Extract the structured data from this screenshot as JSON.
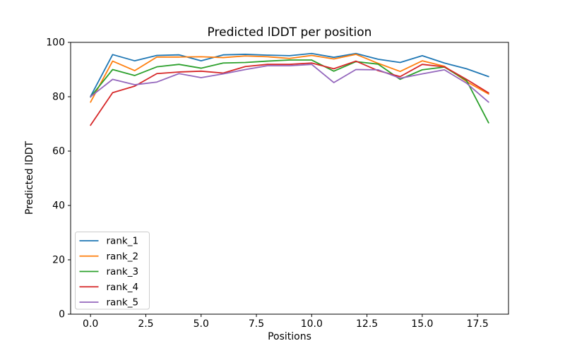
{
  "chart_data": {
    "type": "line",
    "title": "Predicted lDDT per position",
    "xlabel": "Positions",
    "ylabel": "Predicted lDDT",
    "xlim": [
      -0.9,
      18.9
    ],
    "ylim": [
      0,
      100
    ],
    "grid": false,
    "legend_position": "lower left",
    "x": [
      0,
      1,
      2,
      3,
      4,
      5,
      6,
      7,
      8,
      9,
      10,
      11,
      12,
      13,
      14,
      15,
      16,
      17,
      18
    ],
    "xtick_values": [
      0,
      2.5,
      5,
      7.5,
      10,
      12.5,
      15,
      17.5
    ],
    "xtick_labels": [
      "0.0",
      "2.5",
      "5.0",
      "7.5",
      "10.0",
      "12.5",
      "15.0",
      "17.5"
    ],
    "ytick_values": [
      0,
      20,
      40,
      60,
      80,
      100
    ],
    "ytick_labels": [
      "0",
      "20",
      "40",
      "60",
      "80",
      "100"
    ],
    "series": [
      {
        "name": "rank_1",
        "color": "#1f77b4",
        "values": [
          80.1,
          95.5,
          93.2,
          95.2,
          95.4,
          93.2,
          95.4,
          95.6,
          95.3,
          95.1,
          95.9,
          94.5,
          95.9,
          93.8,
          92.6,
          95.1,
          92.4,
          90.3,
          87.4
        ]
      },
      {
        "name": "rank_2",
        "color": "#ff7f0e",
        "values": [
          78.0,
          93.1,
          89.6,
          94.6,
          94.6,
          94.7,
          94.4,
          95.0,
          94.7,
          94.1,
          95.2,
          93.9,
          95.6,
          92.3,
          89.3,
          93.2,
          91.2,
          85.6,
          81.0
        ]
      },
      {
        "name": "rank_3",
        "color": "#2ca02c",
        "values": [
          79.9,
          90.0,
          87.8,
          91.0,
          91.9,
          90.5,
          92.4,
          92.6,
          93.1,
          93.5,
          93.5,
          89.4,
          92.9,
          92.0,
          86.4,
          89.9,
          90.9,
          86.0,
          70.4
        ]
      },
      {
        "name": "rank_4",
        "color": "#d62728",
        "values": [
          69.5,
          81.5,
          83.9,
          88.5,
          89.1,
          89.4,
          88.7,
          91.1,
          91.9,
          91.9,
          92.4,
          90.3,
          93.1,
          89.6,
          87.4,
          91.9,
          91.0,
          86.4,
          81.4
        ]
      },
      {
        "name": "rank_5",
        "color": "#9467bd",
        "values": [
          80.0,
          86.4,
          84.4,
          85.4,
          88.5,
          87.0,
          88.4,
          90.0,
          91.4,
          91.4,
          91.9,
          85.2,
          90.0,
          89.9,
          86.8,
          88.4,
          89.9,
          85.0,
          78.0
        ]
      }
    ]
  }
}
